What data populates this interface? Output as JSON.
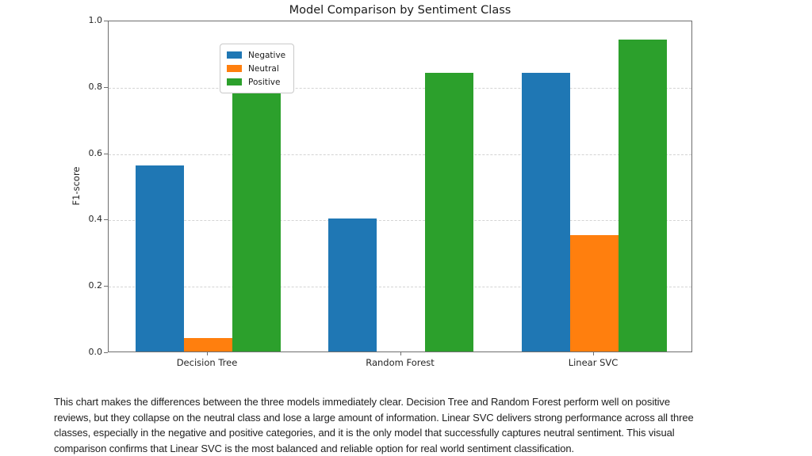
{
  "chart_data": {
    "type": "bar",
    "title": "Model Comparison by Sentiment Class",
    "xlabel": "",
    "ylabel": "F1-score",
    "categories": [
      "Decision Tree",
      "Random Forest",
      "Linear SVC"
    ],
    "series": [
      {
        "name": "Negative",
        "color": "#1f77b4",
        "values": [
          0.56,
          0.4,
          0.84
        ]
      },
      {
        "name": "Neutral",
        "color": "#ff7f0e",
        "values": [
          0.04,
          0.0,
          0.35
        ]
      },
      {
        "name": "Positive",
        "color": "#2ca02c",
        "values": [
          0.83,
          0.84,
          0.94
        ]
      }
    ],
    "ylim": [
      0.0,
      1.0
    ],
    "yticks": [
      0.0,
      0.2,
      0.4,
      0.6,
      0.8,
      1.0
    ],
    "grid": "horizontal-dashed",
    "legend_position": "upper-left",
    "legend_entries": [
      "Negative",
      "Neutral",
      "Positive"
    ]
  },
  "caption": {
    "lines": [
      "This chart makes the differences between the three models immediately clear. Decision Tree and Random Forest perform well on positive",
      "reviews, but they collapse on the neutral class and lose a large amount of information. Linear SVC delivers strong performance across all three",
      "classes, especially in the negative and positive categories, and it is the only model that successfully captures neutral sentiment. This visual",
      "comparison confirms that Linear SVC is the most balanced and reliable option for real world sentiment classification."
    ]
  }
}
